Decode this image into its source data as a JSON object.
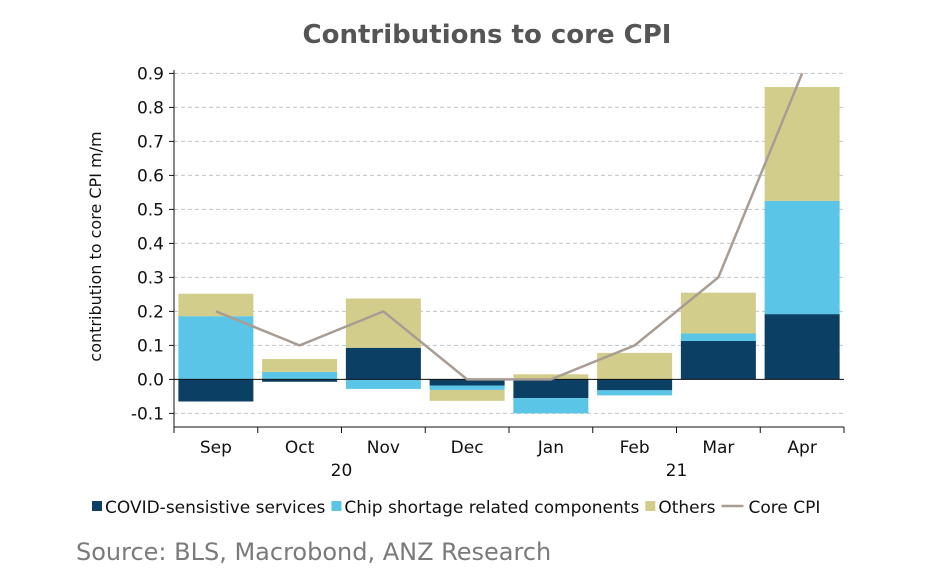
{
  "chart_data": {
    "type": "bar",
    "stacked": true,
    "title": "Contributions to core CPI",
    "ylabel": "contribution to core CPI m/m",
    "xlabel": "",
    "categories": [
      "Sep",
      "Oct",
      "Nov",
      "Dec",
      "Jan",
      "Feb",
      "Mar",
      "Apr"
    ],
    "year_labels": [
      {
        "label": "20",
        "categories": [
          "Sep",
          "Oct",
          "Nov",
          "Dec"
        ]
      },
      {
        "label": "21",
        "categories": [
          "Jan",
          "Feb",
          "Mar",
          "Apr"
        ]
      }
    ],
    "ylim": [
      -0.14,
      0.91
    ],
    "yticks": [
      -0.1,
      0.0,
      0.1,
      0.2,
      0.3,
      0.4,
      0.5,
      0.6,
      0.7,
      0.8,
      0.9
    ],
    "ytick_labels": [
      "-0.1",
      "0.0",
      "0.1",
      "0.2",
      "0.3",
      "0.4",
      "0.5",
      "0.6",
      "0.7",
      "0.8",
      "0.9"
    ],
    "grid": true,
    "legend_position": "bottom",
    "series": [
      {
        "name": "COVID-sensistive services",
        "kind": "bar",
        "color": "#0b3f63",
        "values": [
          -0.065,
          -0.007,
          0.093,
          -0.018,
          -0.055,
          -0.032,
          0.113,
          0.192
        ]
      },
      {
        "name": "Chip shortage related components",
        "kind": "bar",
        "color": "#5bc5e8",
        "values": [
          0.186,
          0.022,
          -0.028,
          -0.013,
          -0.045,
          -0.015,
          0.022,
          0.333
        ]
      },
      {
        "name": "Others",
        "kind": "bar",
        "color": "#d3cd8b",
        "values": [
          0.066,
          0.038,
          0.145,
          -0.032,
          0.015,
          0.078,
          0.12,
          0.335
        ]
      },
      {
        "name": "Core CPI",
        "kind": "line",
        "color": "#a89d94",
        "values": [
          0.2,
          0.1,
          0.2,
          0.0,
          0.0,
          0.1,
          0.3,
          0.9
        ]
      }
    ]
  },
  "source": "Source: BLS, Macrobond, ANZ Research"
}
